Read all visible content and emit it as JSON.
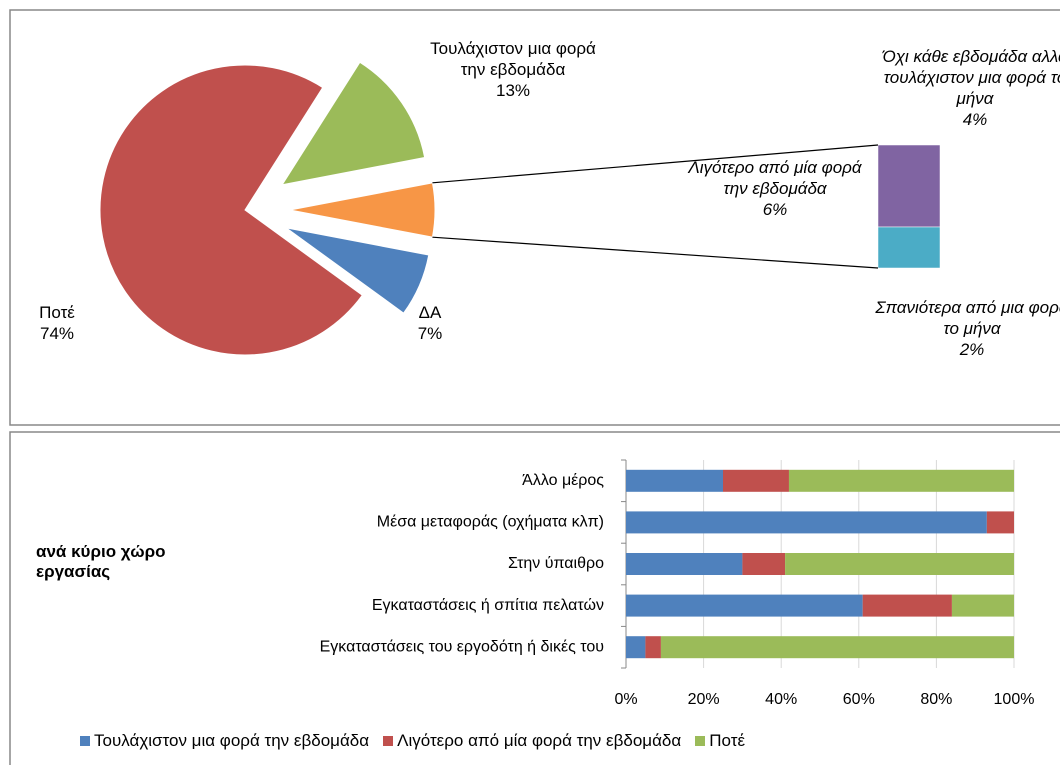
{
  "chart_data": [
    {
      "type": "pie",
      "categories": [
        "Τουλάχιστον μια φορά την εβδομάδα",
        "Λιγότερο από μία φορά την εβδομάδα",
        "ΔΑ",
        "Ποτέ"
      ],
      "values": [
        13,
        6,
        7,
        74
      ],
      "value_labels": [
        "13%",
        "6%",
        "7%",
        "74%"
      ],
      "colors": [
        "#9bbb59",
        "#f79646",
        "#4f81bd",
        "#c0504d"
      ],
      "split": {
        "categories": [
          "Όχι κάθε εβδομάδα αλλά τουλάχιστον μια φορά το μήνα",
          "Σπανιότερα από μια φορά το μήνα"
        ],
        "values": [
          4,
          2
        ],
        "value_labels": [
          "4%",
          "2%"
        ],
        "colors": [
          "#8064a2",
          "#4bacc6"
        ]
      }
    },
    {
      "type": "stacked-barh",
      "title": "ανά κύριο χώρο εργασίας",
      "categories": [
        "Εγκαταστάσεις του εργοδότη ή δικές του",
        "Εγκαταστάσεις ή σπίτια πελατών",
        "Στην ύπαιθρο",
        "Μέσα μεταφοράς (οχήματα κλπ)",
        "Άλλο μέρος"
      ],
      "series": [
        {
          "name": "Τουλάχιστον μια φορά την εβδομάδα",
          "color": "#4f81bd",
          "values": [
            5,
            61,
            30,
            93,
            25
          ]
        },
        {
          "name": "Λιγότερο από μία φορά την εβδομάδα",
          "color": "#c0504d",
          "values": [
            4,
            23,
            11,
            7,
            17
          ]
        },
        {
          "name": "Ποτέ",
          "color": "#9bbb59",
          "values": [
            91,
            16,
            59,
            0,
            58
          ]
        }
      ],
      "xlim": [
        0,
        100
      ],
      "xticks": [
        {
          "value": 0,
          "label": "0%"
        },
        {
          "value": 20,
          "label": "20%"
        },
        {
          "value": 40,
          "label": "40%"
        },
        {
          "value": 60,
          "label": "60%"
        },
        {
          "value": 80,
          "label": "80%"
        },
        {
          "value": 100,
          "label": "100%"
        }
      ],
      "grid": true,
      "legend": "bottom"
    }
  ]
}
